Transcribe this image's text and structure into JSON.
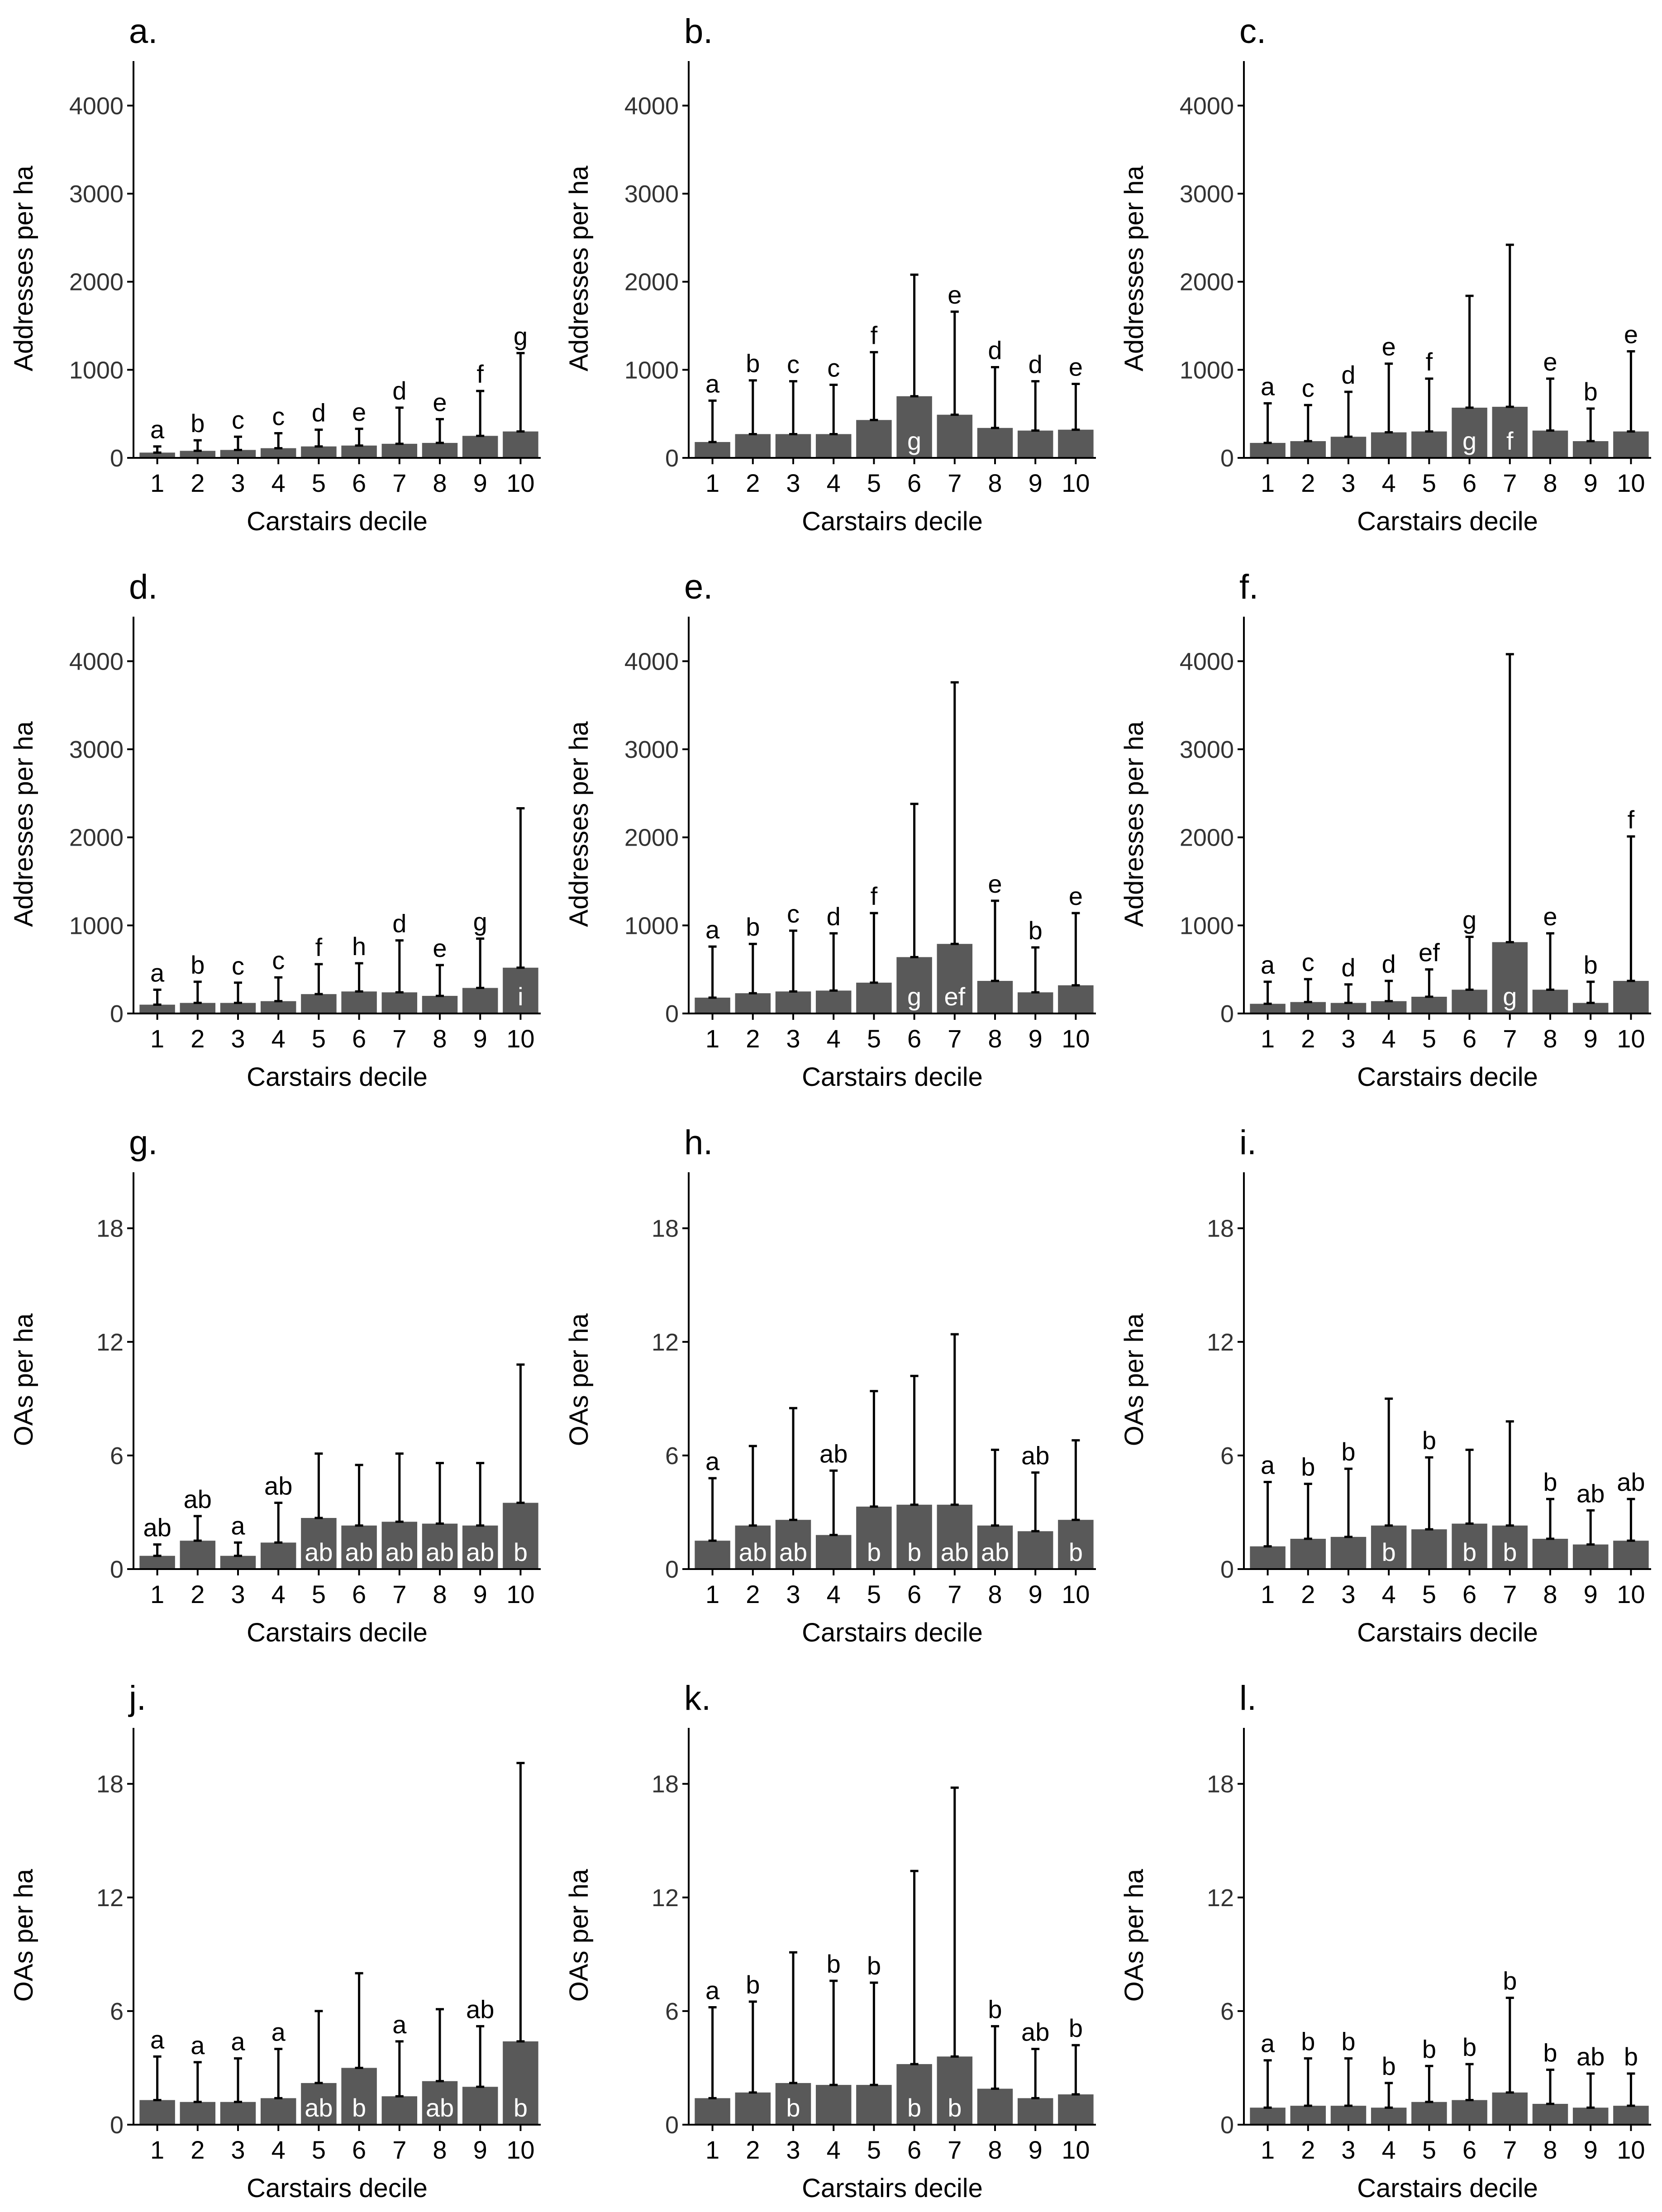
{
  "figure": {
    "bar_color": "#595959",
    "axis_color": "#000000",
    "label_inside_color": "#ffffff",
    "label_outside_color": "#000000"
  },
  "chart_data": [
    {
      "panel": "a.",
      "type": "bar",
      "xlabel": "Carstairs decile",
      "ylabel": "Addresses per ha",
      "ylim": [
        0,
        4300
      ],
      "yticks": [
        0,
        1000,
        2000,
        3000,
        4000
      ],
      "categories": [
        "1",
        "2",
        "3",
        "4",
        "5",
        "6",
        "7",
        "8",
        "9",
        "10"
      ],
      "values": [
        60,
        80,
        90,
        110,
        130,
        140,
        160,
        170,
        250,
        300
      ],
      "error_upper": [
        130,
        200,
        240,
        280,
        320,
        330,
        570,
        440,
        760,
        1190
      ],
      "labels": [
        "a",
        "b",
        "c",
        "c",
        "d",
        "e",
        "d",
        "e",
        "f",
        "g"
      ],
      "label_inside": [
        false,
        false,
        false,
        false,
        false,
        false,
        false,
        false,
        false,
        false
      ]
    },
    {
      "panel": "b.",
      "type": "bar",
      "xlabel": "Carstairs decile",
      "ylabel": "Addresses per ha",
      "ylim": [
        0,
        4300
      ],
      "yticks": [
        0,
        1000,
        2000,
        3000,
        4000
      ],
      "categories": [
        "1",
        "2",
        "3",
        "4",
        "5",
        "6",
        "7",
        "8",
        "9",
        "10"
      ],
      "values": [
        180,
        270,
        270,
        270,
        430,
        700,
        490,
        340,
        310,
        320
      ],
      "error_upper": [
        650,
        880,
        870,
        830,
        1200,
        2080,
        1660,
        1030,
        870,
        840
      ],
      "labels": [
        "a",
        "b",
        "c",
        "c",
        "f",
        "g",
        "e",
        "d",
        "d",
        "e"
      ],
      "label_inside": [
        false,
        false,
        false,
        false,
        false,
        true,
        false,
        false,
        false,
        false
      ]
    },
    {
      "panel": "c.",
      "type": "bar",
      "xlabel": "Carstairs decile",
      "ylabel": "Addresses per ha",
      "ylim": [
        0,
        4300
      ],
      "yticks": [
        0,
        1000,
        2000,
        3000,
        4000
      ],
      "categories": [
        "1",
        "2",
        "3",
        "4",
        "5",
        "6",
        "7",
        "8",
        "9",
        "10"
      ],
      "values": [
        170,
        190,
        240,
        290,
        300,
        570,
        580,
        310,
        190,
        300
      ],
      "error_upper": [
        620,
        600,
        750,
        1070,
        900,
        1840,
        2420,
        900,
        560,
        1210
      ],
      "labels": [
        "a",
        "c",
        "d",
        "e",
        "f",
        "g",
        "f",
        "e",
        "b",
        "e"
      ],
      "label_inside": [
        false,
        false,
        false,
        false,
        false,
        true,
        true,
        false,
        false,
        false
      ]
    },
    {
      "panel": "d.",
      "type": "bar",
      "xlabel": "Carstairs decile",
      "ylabel": "Addresses per ha",
      "ylim": [
        0,
        4300
      ],
      "yticks": [
        0,
        1000,
        2000,
        3000,
        4000
      ],
      "categories": [
        "1",
        "2",
        "3",
        "4",
        "5",
        "6",
        "7",
        "8",
        "9",
        "10"
      ],
      "values": [
        100,
        120,
        120,
        140,
        220,
        250,
        240,
        200,
        290,
        520
      ],
      "error_upper": [
        270,
        360,
        350,
        410,
        560,
        570,
        830,
        550,
        850,
        2330
      ],
      "labels": [
        "a",
        "b",
        "c",
        "c",
        "f",
        "h",
        "d",
        "e",
        "g",
        "i"
      ],
      "label_inside": [
        false,
        false,
        false,
        false,
        false,
        false,
        false,
        false,
        false,
        true
      ]
    },
    {
      "panel": "e.",
      "type": "bar",
      "xlabel": "Carstairs decile",
      "ylabel": "Addresses per ha",
      "ylim": [
        0,
        4300
      ],
      "yticks": [
        0,
        1000,
        2000,
        3000,
        4000
      ],
      "categories": [
        "1",
        "2",
        "3",
        "4",
        "5",
        "6",
        "7",
        "8",
        "9",
        "10"
      ],
      "values": [
        180,
        230,
        250,
        260,
        350,
        640,
        790,
        370,
        240,
        320
      ],
      "error_upper": [
        760,
        790,
        940,
        910,
        1140,
        2380,
        3760,
        1280,
        750,
        1140
      ],
      "labels": [
        "a",
        "b",
        "c",
        "d",
        "f",
        "g",
        "ef",
        "e",
        "b",
        "e"
      ],
      "label_inside": [
        false,
        false,
        false,
        false,
        false,
        true,
        true,
        false,
        false,
        false
      ]
    },
    {
      "panel": "f.",
      "type": "bar",
      "xlabel": "Carstairs decile",
      "ylabel": "Addresses per ha",
      "ylim": [
        0,
        4300
      ],
      "yticks": [
        0,
        1000,
        2000,
        3000,
        4000
      ],
      "categories": [
        "1",
        "2",
        "3",
        "4",
        "5",
        "6",
        "7",
        "8",
        "9",
        "10"
      ],
      "values": [
        110,
        130,
        120,
        140,
        190,
        270,
        810,
        270,
        120,
        370
      ],
      "error_upper": [
        360,
        390,
        330,
        370,
        500,
        870,
        4080,
        910,
        360,
        2010
      ],
      "labels": [
        "a",
        "c",
        "d",
        "d",
        "ef",
        "g",
        "g",
        "e",
        "b",
        "f"
      ],
      "label_inside": [
        false,
        false,
        false,
        false,
        false,
        false,
        true,
        false,
        false,
        false
      ]
    },
    {
      "panel": "g.",
      "type": "bar",
      "xlabel": "Carstairs decile",
      "ylabel": "OAs per ha",
      "ylim": [
        0,
        20
      ],
      "yticks": [
        0,
        6,
        12,
        18
      ],
      "categories": [
        "1",
        "2",
        "3",
        "4",
        "5",
        "6",
        "7",
        "8",
        "9",
        "10"
      ],
      "values": [
        0.7,
        1.5,
        0.7,
        1.4,
        2.7,
        2.3,
        2.5,
        2.4,
        2.3,
        3.5
      ],
      "error_upper": [
        1.3,
        2.8,
        1.4,
        3.5,
        6.1,
        5.5,
        6.1,
        5.6,
        5.6,
        10.8
      ],
      "labels": [
        "ab",
        "ab",
        "a",
        "ab",
        "ab",
        "ab",
        "ab",
        "ab",
        "ab",
        "b"
      ],
      "label_inside": [
        false,
        false,
        false,
        false,
        true,
        true,
        true,
        true,
        true,
        true
      ]
    },
    {
      "panel": "h.",
      "type": "bar",
      "xlabel": "Carstairs decile",
      "ylabel": "OAs per ha",
      "ylim": [
        0,
        20
      ],
      "yticks": [
        0,
        6,
        12,
        18
      ],
      "categories": [
        "1",
        "2",
        "3",
        "4",
        "5",
        "6",
        "7",
        "8",
        "9",
        "10"
      ],
      "values": [
        1.5,
        2.3,
        2.6,
        1.8,
        3.3,
        3.4,
        3.4,
        2.3,
        2.0,
        2.6
      ],
      "error_upper": [
        4.8,
        6.5,
        8.5,
        5.2,
        9.4,
        10.2,
        12.4,
        6.3,
        5.1,
        6.8
      ],
      "labels": [
        "a",
        "ab",
        "ab",
        "ab",
        "b",
        "b",
        "ab",
        "ab",
        "ab",
        "b"
      ],
      "label_inside": [
        false,
        true,
        true,
        false,
        true,
        true,
        true,
        true,
        false,
        true
      ]
    },
    {
      "panel": "i.",
      "type": "bar",
      "xlabel": "Carstairs decile",
      "ylabel": "OAs per ha",
      "ylim": [
        0,
        20
      ],
      "yticks": [
        0,
        6,
        12,
        18
      ],
      "categories": [
        "1",
        "2",
        "3",
        "4",
        "5",
        "6",
        "7",
        "8",
        "9",
        "10"
      ],
      "values": [
        1.2,
        1.6,
        1.7,
        2.3,
        2.1,
        2.4,
        2.3,
        1.6,
        1.3,
        1.5
      ],
      "error_upper": [
        4.6,
        4.5,
        5.3,
        9.0,
        5.9,
        6.3,
        7.8,
        3.7,
        3.1,
        3.7
      ],
      "labels": [
        "a",
        "b",
        "b",
        "b",
        "b",
        "b",
        "b",
        "b",
        "ab",
        "ab"
      ],
      "label_inside": [
        false,
        false,
        false,
        true,
        false,
        true,
        true,
        false,
        false,
        false
      ]
    },
    {
      "panel": "j.",
      "type": "bar",
      "xlabel": "Carstairs decile",
      "ylabel": "OAs per ha",
      "ylim": [
        0,
        20
      ],
      "yticks": [
        0,
        6,
        12,
        18
      ],
      "categories": [
        "1",
        "2",
        "3",
        "4",
        "5",
        "6",
        "7",
        "8",
        "9",
        "10"
      ],
      "values": [
        1.3,
        1.2,
        1.2,
        1.4,
        2.2,
        3.0,
        1.5,
        2.3,
        2.0,
        4.4
      ],
      "error_upper": [
        3.6,
        3.3,
        3.5,
        4.0,
        6.0,
        8.0,
        4.4,
        6.1,
        5.2,
        19.1
      ],
      "labels": [
        "a",
        "a",
        "a",
        "a",
        "ab",
        "b",
        "a",
        "ab",
        "ab",
        "b"
      ],
      "label_inside": [
        false,
        false,
        false,
        false,
        true,
        true,
        false,
        true,
        false,
        true
      ]
    },
    {
      "panel": "k.",
      "type": "bar",
      "xlabel": "Carstairs decile",
      "ylabel": "OAs per ha",
      "ylim": [
        0,
        20
      ],
      "yticks": [
        0,
        6,
        12,
        18
      ],
      "categories": [
        "1",
        "2",
        "3",
        "4",
        "5",
        "6",
        "7",
        "8",
        "9",
        "10"
      ],
      "values": [
        1.4,
        1.7,
        2.2,
        2.1,
        2.1,
        3.2,
        3.6,
        1.9,
        1.4,
        1.6
      ],
      "error_upper": [
        6.2,
        6.5,
        9.1,
        7.6,
        7.5,
        13.4,
        17.8,
        5.2,
        4.0,
        4.2
      ],
      "labels": [
        "a",
        "b",
        "b",
        "b",
        "b",
        "b",
        "b",
        "b",
        "ab",
        "b"
      ],
      "label_inside": [
        false,
        false,
        true,
        false,
        false,
        true,
        true,
        false,
        false,
        false
      ]
    },
    {
      "panel": "l.",
      "type": "bar",
      "xlabel": "Carstairs decile",
      "ylabel": "OAs per ha",
      "ylim": [
        0,
        20
      ],
      "yticks": [
        0,
        6,
        12,
        18
      ],
      "categories": [
        "1",
        "2",
        "3",
        "4",
        "5",
        "6",
        "7",
        "8",
        "9",
        "10"
      ],
      "values": [
        0.9,
        1.0,
        1.0,
        0.9,
        1.2,
        1.3,
        1.7,
        1.1,
        0.9,
        1.0
      ],
      "error_upper": [
        3.4,
        3.5,
        3.5,
        2.2,
        3.1,
        3.2,
        6.7,
        2.9,
        2.7,
        2.7
      ],
      "labels": [
        "a",
        "b",
        "b",
        "b",
        "b",
        "b",
        "b",
        "b",
        "ab",
        "b"
      ],
      "label_inside": [
        false,
        false,
        false,
        false,
        false,
        false,
        false,
        false,
        false,
        false
      ]
    }
  ]
}
